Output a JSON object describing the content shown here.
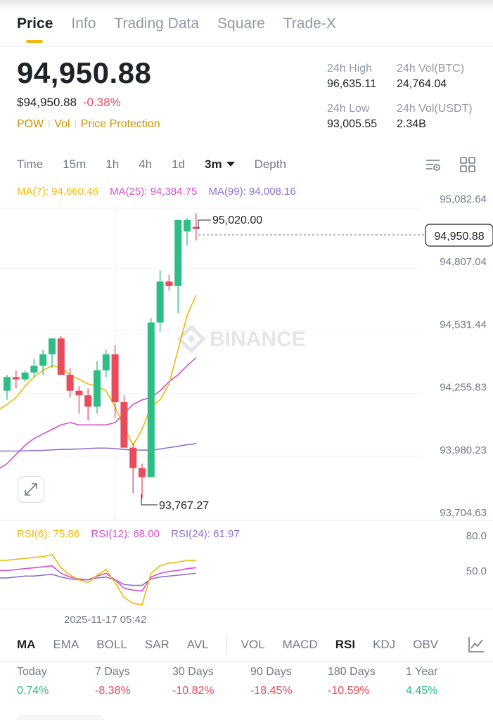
{
  "tabs": [
    {
      "label": "Price",
      "active": true
    },
    {
      "label": "Info"
    },
    {
      "label": "Trading Data"
    },
    {
      "label": "Square"
    },
    {
      "label": "Trade-X"
    }
  ],
  "header": {
    "last_price": "94,950.88",
    "usd_price": "$94,950.88",
    "change_pct": "-0.38%",
    "tags": [
      "POW",
      "Vol",
      "Price Protection"
    ]
  },
  "stats": {
    "high_label": "24h High",
    "high_value": "96,635.11",
    "vol_btc_label": "24h Vol(BTC)",
    "vol_btc_value": "24,764.04",
    "low_label": "24h Low",
    "low_value": "93,005.55",
    "vol_usdt_label": "24h Vol(USDT)",
    "vol_usdt_value": "2.34B"
  },
  "intervals": [
    "Time",
    "15m",
    "1h",
    "4h",
    "1d",
    "3m",
    "Depth"
  ],
  "selected_interval": "3m",
  "icons": {
    "settings": "chart-settings-icon",
    "layout": "grid-layout-icon",
    "expand": "expand-icon",
    "indicator": "indicator-chart-icon"
  },
  "ma": {
    "ma7": "MA(7): 94,660.46",
    "ma25": "MA(25): 94,384.75",
    "ma99": "MA(99): 94,008.16"
  },
  "colors": {
    "up": "#2ebd85",
    "down": "#e84b5c",
    "ma7": "#f0b90b",
    "ma25": "#d54fd0",
    "ma99": "#8e6fd2",
    "accent": "#f0b90b"
  },
  "chart": {
    "price_axis": [
      "95,082.64",
      "94,807.04",
      "94,531.44",
      "94,255.83",
      "93,980.23",
      "93,704.63"
    ],
    "current_price_label": "94,950.88",
    "high_marker": "95,020.00",
    "low_marker": "93,767.27",
    "watermark": "BINANCE",
    "time_label": "2025-11-17 05:42"
  },
  "chart_data": {
    "type": "candlestick",
    "candles": [
      {
        "o": 94240,
        "h": 94310,
        "l": 94200,
        "c": 94300
      },
      {
        "o": 94300,
        "h": 94330,
        "l": 94250,
        "c": 94290
      },
      {
        "o": 94290,
        "h": 94330,
        "l": 94280,
        "c": 94320
      },
      {
        "o": 94320,
        "h": 94380,
        "l": 94300,
        "c": 94350
      },
      {
        "o": 94350,
        "h": 94420,
        "l": 94310,
        "c": 94400
      },
      {
        "o": 94400,
        "h": 94470,
        "l": 94340,
        "c": 94470
      },
      {
        "o": 94470,
        "h": 94480,
        "l": 94320,
        "c": 94310
      },
      {
        "o": 94310,
        "h": 94340,
        "l": 94210,
        "c": 94240
      },
      {
        "o": 94240,
        "h": 94260,
        "l": 94140,
        "c": 94220
      },
      {
        "o": 94220,
        "h": 94250,
        "l": 94110,
        "c": 94170
      },
      {
        "o": 94170,
        "h": 94370,
        "l": 94140,
        "c": 94330
      },
      {
        "o": 94330,
        "h": 94420,
        "l": 94300,
        "c": 94400
      },
      {
        "o": 94400,
        "h": 94440,
        "l": 94120,
        "c": 94190
      },
      {
        "o": 94190,
        "h": 94220,
        "l": 93990,
        "c": 93990
      },
      {
        "o": 93990,
        "h": 94010,
        "l": 93790,
        "c": 93900
      },
      {
        "o": 93900,
        "h": 93920,
        "l": 93767.27,
        "c": 93860
      },
      {
        "o": 93860,
        "h": 94560,
        "l": 93860,
        "c": 94540
      },
      {
        "o": 94540,
        "h": 94770,
        "l": 94500,
        "c": 94720
      },
      {
        "o": 94720,
        "h": 94750,
        "l": 94680,
        "c": 94700
      },
      {
        "o": 94700,
        "h": 94990,
        "l": 94580,
        "c": 94990
      },
      {
        "o": 94940,
        "h": 95000,
        "l": 94880,
        "c": 94990
      },
      {
        "o": 94960,
        "h": 95020,
        "l": 94900,
        "c": 94950.88
      }
    ],
    "ma7": [
      94180,
      94210,
      94260,
      94300,
      94330,
      94350,
      94340,
      94310,
      94290,
      94270,
      94260,
      94240,
      94170,
      94080,
      94000,
      94070,
      94170,
      94200,
      94270,
      94420,
      94570,
      94660
    ],
    "ma25": [
      93920,
      93960,
      94000,
      94030,
      94050,
      94070,
      94090,
      94100,
      94090,
      94090,
      94090,
      94090,
      94100,
      94140,
      94180,
      94200,
      94210,
      94240,
      94280,
      94310,
      94350,
      94385
    ],
    "ma99": [
      93975,
      93975,
      93976,
      93977,
      93978,
      93980,
      93982,
      93983,
      93984,
      93986,
      93988,
      93988,
      93986,
      93982,
      93980,
      93979,
      93980,
      93984,
      93990,
      93996,
      94003,
      94008
    ],
    "ylim": [
      93704.63,
      95082.64
    ]
  },
  "rsi": {
    "rsi6": "RSI(6): 75.86",
    "rsi12": "RSI(12): 68.00",
    "rsi24": "RSI(24): 61.97",
    "axis": [
      "80.0",
      "50.0"
    ],
    "rsi6_values": [
      76,
      77,
      78,
      79,
      80,
      82,
      68,
      60,
      55,
      52,
      60,
      66,
      52,
      36,
      30,
      28,
      62,
      70,
      73,
      74,
      76,
      75.86
    ],
    "rsi12_values": [
      65,
      66,
      67,
      68,
      69,
      70,
      62,
      58,
      56,
      55,
      59,
      62,
      55,
      46,
      44,
      43,
      58,
      62,
      64,
      65,
      67,
      68
    ],
    "rsi24_values": [
      57,
      58,
      59,
      59,
      60,
      61,
      58,
      56,
      55,
      55,
      57,
      58,
      55,
      50,
      49,
      49,
      56,
      58,
      59,
      60,
      61,
      61.97
    ],
    "ylim": [
      20,
      100
    ]
  },
  "indicators": [
    {
      "label": "MA",
      "active": true
    },
    {
      "label": "EMA"
    },
    {
      "label": "BOLL"
    },
    {
      "label": "SAR"
    },
    {
      "label": "AVL"
    },
    {
      "label": "VOL",
      "divider_before": true
    },
    {
      "label": "MACD"
    },
    {
      "label": "RSI",
      "active": true
    },
    {
      "label": "KDJ"
    },
    {
      "label": "OBV"
    }
  ],
  "performance": [
    {
      "label": "Today",
      "value": "0.74%",
      "positive": true
    },
    {
      "label": "7 Days",
      "value": "-8.38%",
      "positive": false
    },
    {
      "label": "30 Days",
      "value": "-10.82%",
      "positive": false
    },
    {
      "label": "90 Days",
      "value": "-18.45%",
      "positive": false
    },
    {
      "label": "180 Days",
      "value": "-10.59%",
      "positive": false
    },
    {
      "label": "1 Year",
      "value": "4.45%",
      "positive": true
    }
  ]
}
